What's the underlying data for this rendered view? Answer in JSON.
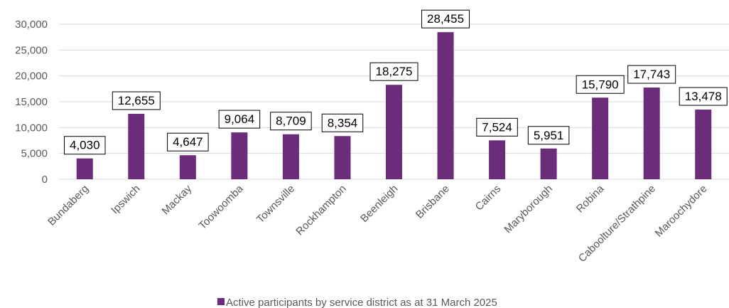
{
  "chart_data": {
    "type": "bar",
    "categories": [
      "Bundaberg",
      "Ipswich",
      "Mackay",
      "Toowoomba",
      "Townsville",
      "Rockhampton",
      "Beenleigh",
      "Brisbane",
      "Cairns",
      "Maryborough",
      "Robina",
      "Caboolture/Strathpine",
      "Maroochydore"
    ],
    "series": [
      {
        "name": "Active participants by service district as at 31 March 2025",
        "values": [
          4030,
          12655,
          4647,
          9064,
          8709,
          8354,
          18275,
          28455,
          7524,
          5951,
          15790,
          17743,
          13478
        ],
        "labels": [
          "4,030",
          "12,655",
          "4,647",
          "9,064",
          "8,709",
          "8,354",
          "18,275",
          "28,455",
          "7,524",
          "5,951",
          "15,790",
          "17,743",
          "13,478"
        ]
      }
    ],
    "yticks": [
      "0",
      "5,000",
      "10,000",
      "15,000",
      "20,000",
      "25,000",
      "30,000"
    ],
    "ylim": [
      0,
      30000
    ],
    "grid": true,
    "legend_position": "bottom",
    "title": "",
    "xlabel": "",
    "ylabel": "",
    "colors": {
      "bar": "#6B2C7A",
      "grid": "#D9D9D9",
      "text": "#595959"
    }
  }
}
